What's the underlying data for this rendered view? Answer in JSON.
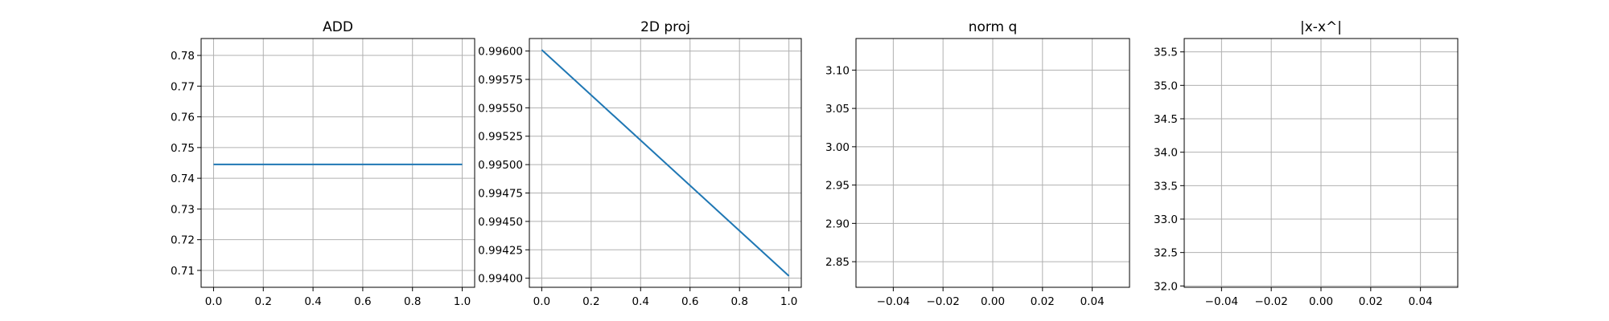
{
  "chart_data": [
    {
      "type": "line",
      "title": "ADD",
      "xlabel": "",
      "ylabel": "",
      "xlim": [
        -0.05,
        1.05
      ],
      "ylim": [
        0.7045,
        0.7855
      ],
      "xticks": [
        0.0,
        0.2,
        0.4,
        0.6,
        0.8,
        1.0
      ],
      "xtick_labels": [
        "0.0",
        "0.2",
        "0.4",
        "0.6",
        "0.8",
        "1.0"
      ],
      "yticks": [
        0.71,
        0.72,
        0.73,
        0.74,
        0.75,
        0.76,
        0.77,
        0.78
      ],
      "ytick_labels": [
        "0.71",
        "0.72",
        "0.73",
        "0.74",
        "0.75",
        "0.76",
        "0.77",
        "0.78"
      ],
      "grid": true,
      "series": [
        {
          "x": [
            0.0,
            1.0
          ],
          "y": [
            0.7445,
            0.7445
          ],
          "color": "#1f77b4"
        }
      ]
    },
    {
      "type": "line",
      "title": "2D proj",
      "xlabel": "",
      "ylabel": "",
      "xlim": [
        -0.05,
        1.05
      ],
      "ylim": [
        0.99392,
        0.99611
      ],
      "xticks": [
        0.0,
        0.2,
        0.4,
        0.6,
        0.8,
        1.0
      ],
      "xtick_labels": [
        "0.0",
        "0.2",
        "0.4",
        "0.6",
        "0.8",
        "1.0"
      ],
      "yticks": [
        0.994,
        0.99425,
        0.9945,
        0.99475,
        0.995,
        0.99525,
        0.9955,
        0.99575,
        0.996
      ],
      "ytick_labels": [
        "0.99400",
        "0.99425",
        "0.99450",
        "0.99475",
        "0.99500",
        "0.99525",
        "0.99550",
        "0.99575",
        "0.99600"
      ],
      "grid": true,
      "series": [
        {
          "x": [
            0.0,
            1.0
          ],
          "y": [
            0.99601,
            0.99402
          ],
          "color": "#1f77b4"
        }
      ]
    },
    {
      "type": "line",
      "title": "norm q",
      "xlabel": "",
      "ylabel": "",
      "xlim": [
        -0.055,
        0.055
      ],
      "ylim": [
        2.8166,
        3.1412
      ],
      "xticks": [
        -0.04,
        -0.02,
        0.0,
        0.02,
        0.04
      ],
      "xtick_labels": [
        "−0.04",
        "−0.02",
        "0.00",
        "0.02",
        "0.04"
      ],
      "yticks": [
        2.85,
        2.9,
        2.95,
        3.0,
        3.05,
        3.1
      ],
      "ytick_labels": [
        "2.85",
        "2.90",
        "2.95",
        "3.00",
        "3.05",
        "3.10"
      ],
      "grid": true,
      "series": []
    },
    {
      "type": "line",
      "title": "|x-x^|",
      "xlabel": "",
      "ylabel": "",
      "xlim": [
        -0.055,
        0.055
      ],
      "ylim": [
        31.98,
        35.7
      ],
      "xticks": [
        -0.04,
        -0.02,
        0.0,
        0.02,
        0.04
      ],
      "xtick_labels": [
        "−0.04",
        "−0.02",
        "0.00",
        "0.02",
        "0.04"
      ],
      "yticks": [
        32.0,
        32.5,
        33.0,
        33.5,
        34.0,
        34.5,
        35.0,
        35.5
      ],
      "ytick_labels": [
        "32.0",
        "32.5",
        "33.0",
        "33.5",
        "34.0",
        "34.5",
        "35.0",
        "35.5"
      ],
      "grid": true,
      "series": []
    }
  ]
}
